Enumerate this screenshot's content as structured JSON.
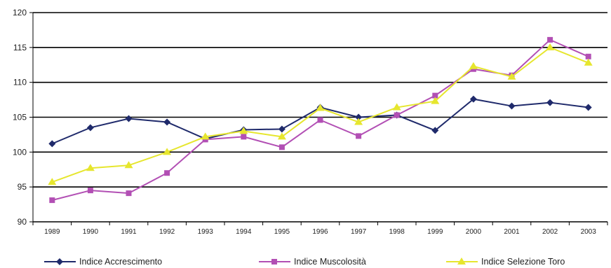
{
  "chart_data": {
    "type": "line",
    "title": "",
    "xlabel": "",
    "ylabel": "",
    "categories": [
      "1989",
      "1990",
      "1991",
      "1992",
      "1993",
      "1994",
      "1995",
      "1996",
      "1997",
      "1998",
      "1999",
      "2000",
      "2001",
      "2002",
      "2003"
    ],
    "ylim": [
      90,
      120
    ],
    "yticks": [
      90,
      95,
      100,
      105,
      110,
      115,
      120
    ],
    "grid": "horizontal",
    "legend_position": "bottom",
    "series": [
      {
        "name": "Indice Accrescimento",
        "color": "#1f2a6b",
        "marker": "diamond",
        "values": [
          101.2,
          103.5,
          104.8,
          104.3,
          101.9,
          103.2,
          103.3,
          106.4,
          105.0,
          105.3,
          103.1,
          107.6,
          106.6,
          107.1,
          106.4
        ]
      },
      {
        "name": "Indice Muscolosità",
        "color": "#b24fb4",
        "marker": "square",
        "values": [
          93.1,
          94.5,
          94.1,
          97.0,
          101.8,
          102.2,
          100.7,
          104.6,
          102.3,
          105.3,
          108.1,
          111.9,
          111.0,
          116.1,
          113.7
        ]
      },
      {
        "name": "Indice Selezione Toro",
        "color": "#e6e62e",
        "marker": "triangle",
        "values": [
          95.7,
          97.7,
          98.1,
          100.0,
          102.2,
          103.0,
          102.2,
          106.3,
          104.3,
          106.4,
          107.3,
          112.3,
          110.8,
          115.0,
          112.8
        ]
      }
    ]
  }
}
